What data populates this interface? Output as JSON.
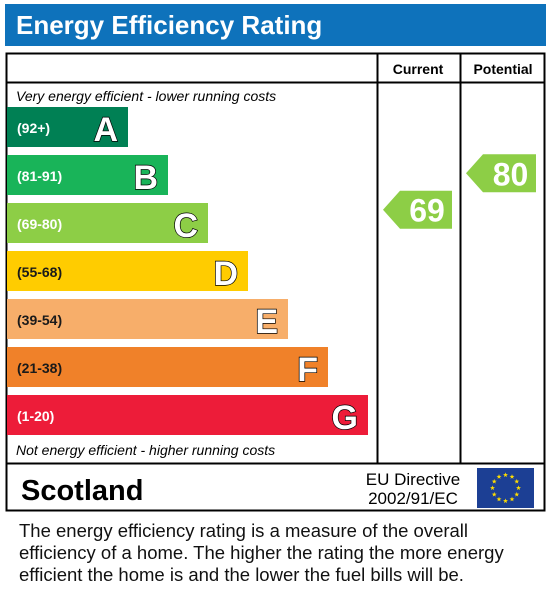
{
  "header": {
    "title": "Energy Efficiency Rating"
  },
  "columns": {
    "current": "Current",
    "potential": "Potential"
  },
  "top_note": "Very energy efficient - lower running costs",
  "bottom_note": "Not energy efficient - higher running costs",
  "region": "Scotland",
  "directive": {
    "line1": "EU Directive",
    "line2": "2002/91/EC"
  },
  "footer_text": "The energy efficiency rating is a measure of the overall efficiency of a home.  The higher the rating the more energy efficient the home is and the lower the fuel bills will be.",
  "chart_data": {
    "type": "bar",
    "title": "Energy Efficiency Rating",
    "bands": [
      {
        "letter": "A",
        "range": "(92+)",
        "color": "#008054"
      },
      {
        "letter": "B",
        "range": "(81-91)",
        "color": "#19b459"
      },
      {
        "letter": "C",
        "range": "(69-80)",
        "color": "#8dce46"
      },
      {
        "letter": "D",
        "range": "(55-68)",
        "color": "#ffcc00"
      },
      {
        "letter": "E",
        "range": "(39-54)",
        "color": "#f7ae6a"
      },
      {
        "letter": "F",
        "range": "(21-38)",
        "color": "#f08129"
      },
      {
        "letter": "G",
        "range": "(1-20)",
        "color": "#ed1c39"
      }
    ],
    "current": {
      "value": 69,
      "label": "69",
      "band": "C",
      "color": "#8dce46"
    },
    "potential": {
      "value": 80,
      "label": "80",
      "band": "C",
      "color": "#8dce46"
    }
  }
}
